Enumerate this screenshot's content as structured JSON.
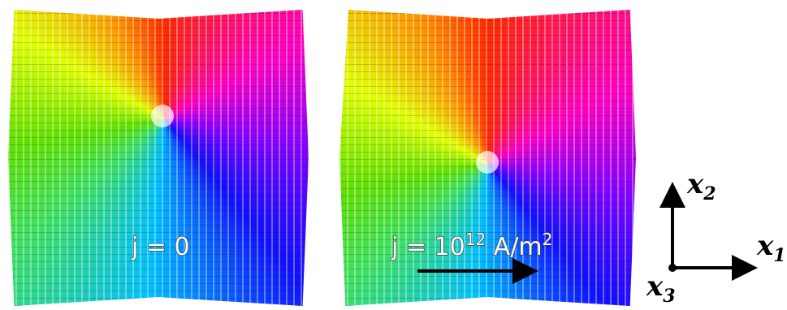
{
  "panels": [
    {
      "label": {
        "text": "j = 0"
      }
    },
    {
      "label": {
        "text": "j = 10",
        "exponent": "12",
        "unit": " A/m",
        "unit_exponent": "2"
      }
    }
  ],
  "axes": {
    "x1": {
      "base": "x",
      "sub": "1"
    },
    "x2": {
      "base": "x",
      "sub": "2"
    },
    "x3": {
      "base": "x",
      "sub": "3"
    }
  }
}
